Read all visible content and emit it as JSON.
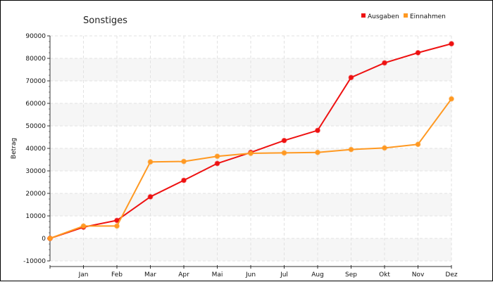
{
  "chart_data": {
    "type": "line",
    "title": "Sonstiges",
    "xlabel": "",
    "ylabel": "Betrag",
    "categories": [
      "",
      "Jan",
      "Feb",
      "Mar",
      "Apr",
      "Mai",
      "Jun",
      "Jul",
      "Aug",
      "Sep",
      "Okt",
      "Nov",
      "Dez"
    ],
    "ylim": [
      -10000,
      90000
    ],
    "yticks": [
      -10000,
      0,
      10000,
      20000,
      30000,
      40000,
      50000,
      60000,
      70000,
      80000,
      90000
    ],
    "grid": true,
    "legend_position": "top-right",
    "series": [
      {
        "name": "Ausgaben",
        "color": "#ee1111",
        "values": [
          0,
          5000,
          8000,
          18500,
          25800,
          33300,
          38200,
          43500,
          48000,
          71500,
          78000,
          82500,
          86500
        ]
      },
      {
        "name": "Einnahmen",
        "color": "#ff9922",
        "values": [
          0,
          5500,
          5500,
          34000,
          34200,
          36500,
          37800,
          38000,
          38200,
          39500,
          40200,
          41800,
          62000
        ]
      }
    ]
  }
}
